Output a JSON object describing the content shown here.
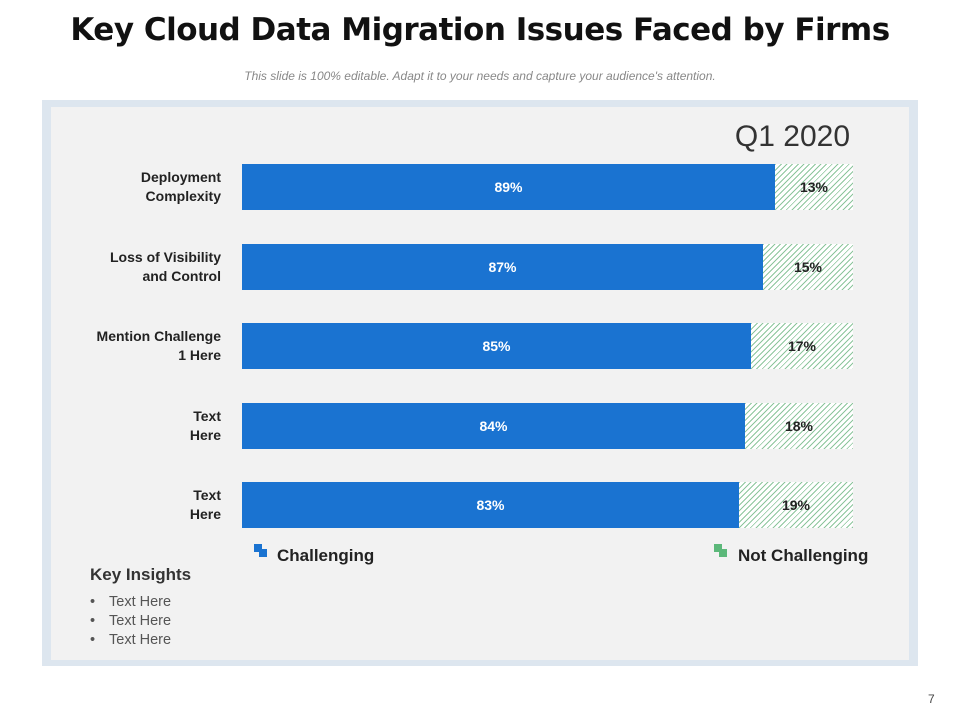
{
  "title": "Key Cloud Data Migration Issues Faced by Firms",
  "subtitle": "This slide is 100% editable. Adapt it to your needs and capture your audience's attention.",
  "page_number": "7",
  "colors": {
    "challenging": "#1a73d1",
    "not_challenging": "#5cb87a",
    "panel": "#f2f2f2"
  },
  "legend": {
    "challenging": "Challenging",
    "not_challenging": "Not Challenging"
  },
  "insights": {
    "title": "Key Insights",
    "items": [
      "Text Here",
      "Text Here",
      "Text Here"
    ]
  },
  "chart_data": {
    "type": "bar",
    "orientation": "horizontal",
    "stacked": true,
    "title": "Q1 2020",
    "categories": [
      [
        "Deployment",
        "Complexity"
      ],
      [
        "Loss of Visibility",
        "and Control"
      ],
      [
        "Mention Challenge",
        "1 Here"
      ],
      [
        "Text",
        "Here"
      ],
      [
        "Text",
        "Here"
      ]
    ],
    "series": [
      {
        "name": "Challenging",
        "values": [
          89,
          87,
          85,
          84,
          83
        ],
        "labels": [
          "89%",
          "87%",
          "85%",
          "84%",
          "83%"
        ]
      },
      {
        "name": "Not Challenging",
        "values": [
          13,
          15,
          17,
          18,
          19
        ],
        "labels": [
          "13%",
          "15%",
          "17%",
          "18%",
          "19%"
        ]
      }
    ],
    "legend_position": "bottom",
    "unit": "%"
  }
}
